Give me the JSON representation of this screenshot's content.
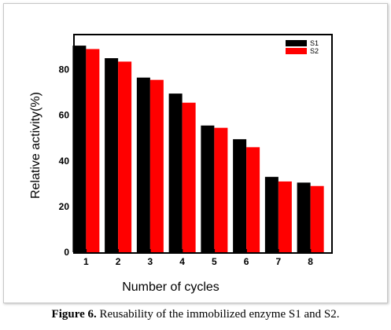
{
  "chart_data": {
    "type": "bar",
    "categories": [
      "1",
      "2",
      "3",
      "4",
      "5",
      "6",
      "7",
      "8"
    ],
    "series": [
      {
        "name": "S1",
        "color": "#000000",
        "values": [
          90.5,
          85,
          76.5,
          69.5,
          55.5,
          49.5,
          33,
          30.5
        ]
      },
      {
        "name": "S2",
        "color": "#ff0000",
        "values": [
          89,
          83.5,
          75.5,
          65.5,
          54.5,
          46,
          31,
          29
        ]
      }
    ],
    "xlabel": "Number of cycles",
    "ylabel": "Relative activity(%)",
    "ylim": [
      0,
      95
    ],
    "yticks": [
      "0",
      "20",
      "40",
      "60",
      "80"
    ],
    "grid": false,
    "legend": "top-right"
  },
  "caption": {
    "label": "Figure 6.",
    "text": " Reusability of the immobilized enzyme S1 and S2."
  }
}
